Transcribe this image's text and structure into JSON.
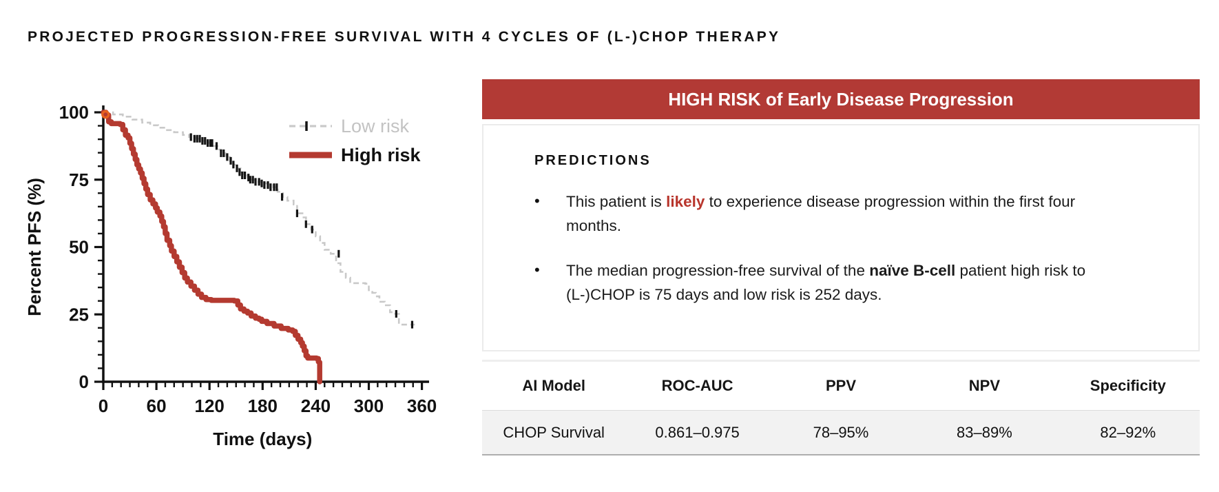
{
  "page": {
    "title": "PROJECTED PROGRESSION-FREE SURVIVAL WITH 4 CYCLES OF (L-)CHOP THERAPY"
  },
  "panel": {
    "header": "HIGH RISK of Early Disease Progression",
    "predictions": {
      "heading": "PREDICTIONS",
      "bullets": [
        {
          "parts": [
            {
              "text": "This patient is ",
              "style": "normal"
            },
            {
              "text": "likely",
              "style": "red-bold"
            },
            {
              "text": " to experience disease progression within the first four months.",
              "style": "normal"
            }
          ]
        },
        {
          "parts": [
            {
              "text": "The median progression-free survival of the ",
              "style": "normal"
            },
            {
              "text": "naïve B-cell",
              "style": "bold"
            },
            {
              "text": " patient high risk to (L-)CHOP is 75 days and low risk is 252 days.",
              "style": "normal"
            }
          ]
        }
      ]
    },
    "table": {
      "columns": [
        "AI Model",
        "ROC-AUC",
        "PPV",
        "NPV",
        "Specificity"
      ],
      "rows": [
        {
          "cells": [
            "CHOP Survival",
            "0.861–0.975",
            "78–95%",
            "83–89%",
            "82–92%"
          ]
        }
      ]
    }
  },
  "colors": {
    "accent_red": "#b23a35",
    "highlight_red": "#b8352c",
    "curve_red": "#b43a30",
    "curve_gray": "#c9c9c9",
    "censor_black": "#141414",
    "start_marker_orange": "#e8611e",
    "table_row_bg": "#f2f2f2"
  },
  "chart_data": {
    "type": "line",
    "subtype": "kaplan-meier-step",
    "title": "",
    "xlabel": "Time (days)",
    "ylabel": "Percent PFS (%)",
    "xlim": [
      0,
      365
    ],
    "ylim": [
      0,
      100
    ],
    "x_ticks": [
      0,
      60,
      120,
      180,
      240,
      300,
      360
    ],
    "x_minor_tick_interval": 10,
    "y_ticks": [
      0,
      25,
      50,
      75,
      100
    ],
    "y_minor_tick_interval": 5,
    "grid": false,
    "legend_position": "upper right",
    "series": [
      {
        "name": "Low risk",
        "style": "dashed",
        "color": "#c9c9c9",
        "line_width": 2.6,
        "steps": [
          [
            0,
            100
          ],
          [
            11,
            99.2
          ],
          [
            22,
            98.4
          ],
          [
            33,
            97.3
          ],
          [
            44,
            96.2
          ],
          [
            53,
            95.2
          ],
          [
            62,
            94.3
          ],
          [
            71,
            93.4
          ],
          [
            80,
            92.6
          ],
          [
            90,
            91.6
          ],
          [
            97,
            90.8
          ],
          [
            104,
            90.2
          ],
          [
            112,
            89.4
          ],
          [
            119,
            88.6
          ],
          [
            124,
            87.5
          ],
          [
            129,
            86.2
          ],
          [
            133,
            84.8
          ],
          [
            138,
            83.4
          ],
          [
            143,
            82
          ],
          [
            147,
            80.6
          ],
          [
            151,
            79.2
          ],
          [
            155,
            77.8
          ],
          [
            158,
            76.6
          ],
          [
            163,
            75.8
          ],
          [
            168,
            75
          ],
          [
            174,
            74.2
          ],
          [
            179,
            73.6
          ],
          [
            186,
            73
          ],
          [
            192,
            72.2
          ],
          [
            197,
            70.5
          ],
          [
            203,
            68.6
          ],
          [
            208,
            67.2
          ],
          [
            215,
            65.8
          ],
          [
            219,
            62.5
          ],
          [
            225,
            61
          ],
          [
            229,
            58.5
          ],
          [
            235,
            56.5
          ],
          [
            240,
            54
          ],
          [
            245,
            51.5
          ],
          [
            250,
            49
          ],
          [
            257,
            47.5
          ],
          [
            263,
            44
          ],
          [
            268,
            40.8
          ],
          [
            274,
            38.6
          ],
          [
            279,
            36.6
          ],
          [
            296,
            36.4
          ],
          [
            300,
            34
          ],
          [
            304,
            33
          ],
          [
            308,
            31.7
          ],
          [
            312,
            29.7
          ],
          [
            318,
            28.4
          ],
          [
            324,
            25.8
          ],
          [
            330,
            25.2
          ],
          [
            334,
            21.2
          ],
          [
            352,
            21.2
          ]
        ],
        "censors": [
          [
            99,
            90.8
          ],
          [
            103,
            90.2
          ],
          [
            106,
            90.2
          ],
          [
            109,
            90.2
          ],
          [
            112,
            89.4
          ],
          [
            115,
            89.4
          ],
          [
            118,
            88.6
          ],
          [
            121,
            88.6
          ],
          [
            123,
            88.6
          ],
          [
            128,
            87.5
          ],
          [
            133,
            84.8
          ],
          [
            136,
            84.8
          ],
          [
            140,
            83.4
          ],
          [
            144,
            82
          ],
          [
            147,
            80.6
          ],
          [
            151,
            79.2
          ],
          [
            154,
            77.8
          ],
          [
            157,
            76.6
          ],
          [
            160,
            76.6
          ],
          [
            164,
            75.8
          ],
          [
            166,
            75
          ],
          [
            169,
            75
          ],
          [
            172,
            74.2
          ],
          [
            176,
            74.2
          ],
          [
            179,
            73.6
          ],
          [
            182,
            73
          ],
          [
            186,
            73
          ],
          [
            189,
            72.2
          ],
          [
            193,
            72.2
          ],
          [
            196,
            72.2
          ],
          [
            202,
            68.6
          ],
          [
            219,
            62.5
          ],
          [
            229,
            58.5
          ],
          [
            236,
            56.5
          ],
          [
            266,
            47.5
          ],
          [
            331,
            25.2
          ],
          [
            349,
            21.2
          ]
        ]
      },
      {
        "name": "High risk",
        "style": "solid",
        "color": "#b43a30",
        "line_width": 7.5,
        "start_marker_color": "#e8611e",
        "steps": [
          [
            0,
            100
          ],
          [
            3,
            99
          ],
          [
            6,
            96.5
          ],
          [
            9,
            95.8
          ],
          [
            19,
            95.5
          ],
          [
            22,
            93.5
          ],
          [
            25,
            91.5
          ],
          [
            28,
            90.5
          ],
          [
            30,
            88.5
          ],
          [
            32,
            86.5
          ],
          [
            34,
            84.5
          ],
          [
            36,
            82.5
          ],
          [
            38,
            80.5
          ],
          [
            40,
            79
          ],
          [
            42,
            77.5
          ],
          [
            44,
            75.5
          ],
          [
            46,
            73.5
          ],
          [
            48,
            71.5
          ],
          [
            50,
            69.5
          ],
          [
            53,
            67.5
          ],
          [
            56,
            66
          ],
          [
            59,
            64.5
          ],
          [
            61,
            63
          ],
          [
            64,
            61.5
          ],
          [
            66,
            59.5
          ],
          [
            68,
            57.5
          ],
          [
            70,
            55
          ],
          [
            72,
            52.5
          ],
          [
            75,
            50.5
          ],
          [
            77,
            48.5
          ],
          [
            80,
            46.5
          ],
          [
            83,
            44.5
          ],
          [
            86,
            42.5
          ],
          [
            89,
            40.5
          ],
          [
            92,
            38.5
          ],
          [
            95,
            37
          ],
          [
            99,
            35.5
          ],
          [
            103,
            34
          ],
          [
            107,
            32.5
          ],
          [
            111,
            31.3
          ],
          [
            116,
            30.5
          ],
          [
            122,
            30.2
          ],
          [
            148,
            30
          ],
          [
            152,
            28.5
          ],
          [
            155,
            27
          ],
          [
            159,
            26.2
          ],
          [
            163,
            25.5
          ],
          [
            167,
            24.4
          ],
          [
            172,
            23.6
          ],
          [
            176,
            23.2
          ],
          [
            179,
            22.4
          ],
          [
            185,
            21.6
          ],
          [
            193,
            20.7
          ],
          [
            201,
            19.8
          ],
          [
            209,
            19.2
          ],
          [
            214,
            18.7
          ],
          [
            217,
            17.2
          ],
          [
            220,
            15.8
          ],
          [
            223,
            14.5
          ],
          [
            225,
            13.2
          ],
          [
            227,
            11.5
          ],
          [
            229,
            9.6
          ],
          [
            231,
            8.8
          ],
          [
            241,
            8.6
          ],
          [
            243,
            7.4
          ],
          [
            244,
            7.2
          ],
          [
            244.5,
            0
          ]
        ],
        "censors": []
      }
    ]
  }
}
